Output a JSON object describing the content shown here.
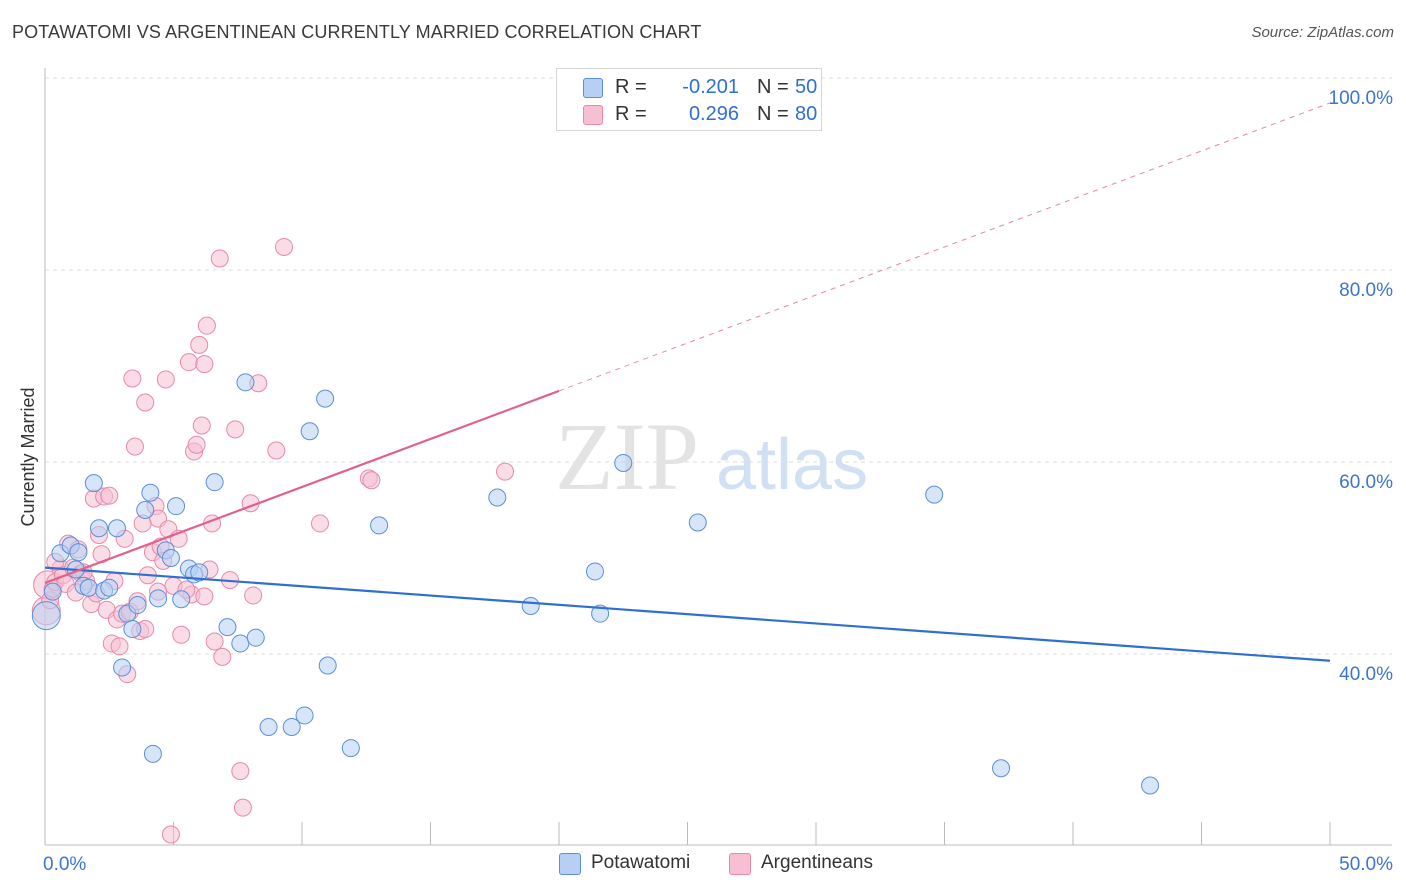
{
  "title": "POTAWATOMI VS ARGENTINEAN CURRENTLY MARRIED CORRELATION CHART",
  "source": "Source: ZipAtlas.com",
  "watermark": {
    "part1": "ZIP",
    "part2": "atlas"
  },
  "legend": {
    "rows": [
      {
        "r_label": "R =",
        "r_value": "-0.201",
        "n_label": "N =",
        "n_value": "50"
      },
      {
        "r_label": "R =",
        "r_value": "0.296",
        "n_label": "N =",
        "n_value": "80"
      }
    ]
  },
  "bottom_legend": [
    "Potawatomi",
    "Argentineans"
  ],
  "colors": {
    "blue_fill": "#b7cff3",
    "blue_stroke": "#5b8fd9",
    "blue_line": "#2f6fd1",
    "pink_fill": "#f6c0d2",
    "pink_stroke": "#e68aa8",
    "pink_line": "#e0628b",
    "axis_text": "#3a76d0",
    "grid": "#dcdcdc"
  },
  "chart_data": {
    "type": "scatter",
    "title": "POTAWATOMI VS ARGENTINEAN CURRENTLY MARRIED CORRELATION CHART",
    "xlabel": "",
    "ylabel": "Currently Married",
    "xlim": [
      0,
      50
    ],
    "ylim": [
      20,
      102
    ],
    "x_tick_labels": [
      "0.0%",
      "50.0%"
    ],
    "y_ticks": [
      40,
      60,
      80,
      100
    ],
    "y_tick_labels": [
      "40.0%",
      "60.0%",
      "80.0%",
      "100.0%"
    ],
    "grid": true,
    "legend_position": "top-center",
    "series": [
      {
        "name": "Potawatomi",
        "color": "#5b8fd9",
        "r": -0.201,
        "n": 50,
        "trend": {
          "x": [
            0,
            50
          ],
          "y": [
            49.0,
            39.3
          ],
          "style": "solid"
        },
        "points": [
          [
            0.05,
            44.0
          ],
          [
            0.6,
            50.5
          ],
          [
            1.0,
            51.3
          ],
          [
            1.2,
            48.8
          ],
          [
            1.3,
            50.6
          ],
          [
            1.5,
            47.1
          ],
          [
            1.7,
            46.9
          ],
          [
            1.9,
            57.8
          ],
          [
            2.1,
            53.1
          ],
          [
            2.3,
            46.6
          ],
          [
            2.5,
            46.9
          ],
          [
            2.8,
            53.1
          ],
          [
            3.0,
            38.6
          ],
          [
            3.2,
            44.2
          ],
          [
            3.4,
            42.6
          ],
          [
            3.6,
            45.1
          ],
          [
            3.9,
            55.0
          ],
          [
            4.1,
            56.8
          ],
          [
            4.2,
            29.6
          ],
          [
            4.4,
            45.8
          ],
          [
            4.7,
            50.8
          ],
          [
            4.9,
            50.0
          ],
          [
            5.1,
            55.4
          ],
          [
            5.3,
            45.7
          ],
          [
            5.6,
            48.9
          ],
          [
            5.8,
            48.3
          ],
          [
            6.0,
            48.5
          ],
          [
            6.6,
            57.9
          ],
          [
            7.1,
            42.8
          ],
          [
            7.6,
            41.1
          ],
          [
            7.8,
            68.3
          ],
          [
            8.2,
            41.7
          ],
          [
            8.7,
            32.4
          ],
          [
            9.6,
            32.4
          ],
          [
            10.1,
            33.6
          ],
          [
            10.3,
            63.2
          ],
          [
            10.9,
            66.6
          ],
          [
            11.0,
            38.8
          ],
          [
            11.9,
            30.2
          ],
          [
            13.0,
            53.4
          ],
          [
            17.6,
            56.3
          ],
          [
            18.9,
            45.0
          ],
          [
            21.4,
            48.6
          ],
          [
            21.6,
            44.2
          ],
          [
            22.5,
            59.9
          ],
          [
            25.4,
            53.7
          ],
          [
            34.6,
            56.6
          ],
          [
            37.2,
            28.1
          ],
          [
            43.0,
            26.3
          ],
          [
            0.3,
            46.5
          ]
        ]
      },
      {
        "name": "Argentineans",
        "color": "#e68aa8",
        "r": 0.296,
        "n": 80,
        "trend": {
          "x": [
            0,
            20
          ],
          "y": [
            47.4,
            67.4
          ],
          "x_dashed": [
            20,
            50
          ],
          "y_dashed": [
            67.4,
            97.4
          ]
        },
        "points": [
          [
            0.05,
            44.5
          ],
          [
            0.1,
            47.2
          ],
          [
            0.2,
            45.6
          ],
          [
            0.3,
            46.8
          ],
          [
            0.4,
            47.5
          ],
          [
            0.6,
            48.9
          ],
          [
            0.7,
            48.2
          ],
          [
            0.9,
            51.5
          ],
          [
            1.1,
            49.0
          ],
          [
            1.3,
            50.9
          ],
          [
            1.4,
            48.4
          ],
          [
            1.6,
            47.6
          ],
          [
            1.8,
            45.2
          ],
          [
            1.9,
            56.2
          ],
          [
            2.1,
            52.4
          ],
          [
            2.2,
            50.4
          ],
          [
            2.3,
            56.4
          ],
          [
            2.4,
            44.6
          ],
          [
            2.5,
            56.5
          ],
          [
            2.6,
            41.1
          ],
          [
            2.7,
            47.6
          ],
          [
            2.8,
            43.6
          ],
          [
            3.0,
            44.2
          ],
          [
            3.1,
            52.0
          ],
          [
            3.2,
            37.9
          ],
          [
            3.3,
            44.4
          ],
          [
            3.4,
            68.7
          ],
          [
            3.5,
            61.6
          ],
          [
            3.6,
            45.5
          ],
          [
            3.7,
            42.4
          ],
          [
            3.8,
            53.6
          ],
          [
            3.9,
            66.2
          ],
          [
            4.0,
            48.2
          ],
          [
            4.2,
            50.6
          ],
          [
            4.3,
            55.4
          ],
          [
            4.4,
            54.1
          ],
          [
            4.5,
            51.2
          ],
          [
            4.6,
            49.7
          ],
          [
            4.7,
            68.6
          ],
          [
            4.8,
            53.0
          ],
          [
            4.9,
            21.2
          ],
          [
            5.2,
            52.0
          ],
          [
            5.3,
            42.0
          ],
          [
            5.6,
            70.4
          ],
          [
            5.7,
            46.2
          ],
          [
            5.8,
            61.1
          ],
          [
            5.9,
            61.8
          ],
          [
            6.0,
            72.2
          ],
          [
            6.1,
            63.8
          ],
          [
            6.2,
            70.2
          ],
          [
            6.3,
            74.2
          ],
          [
            6.4,
            48.8
          ],
          [
            6.5,
            53.6
          ],
          [
            6.6,
            41.3
          ],
          [
            6.8,
            81.2
          ],
          [
            6.9,
            39.7
          ],
          [
            7.2,
            47.7
          ],
          [
            7.4,
            63.4
          ],
          [
            7.6,
            27.8
          ],
          [
            7.7,
            24.0
          ],
          [
            8.0,
            55.7
          ],
          [
            8.1,
            46.1
          ],
          [
            8.3,
            68.2
          ],
          [
            9.0,
            61.2
          ],
          [
            9.3,
            82.4
          ],
          [
            10.7,
            53.6
          ],
          [
            12.6,
            58.3
          ],
          [
            12.7,
            58.1
          ],
          [
            17.9,
            59.0
          ],
          [
            1.5,
            48.5
          ],
          [
            0.8,
            47.3
          ],
          [
            2.0,
            46.3
          ],
          [
            3.9,
            42.6
          ],
          [
            5.0,
            47.1
          ],
          [
            6.2,
            46.0
          ],
          [
            1.2,
            46.4
          ],
          [
            0.4,
            49.6
          ],
          [
            2.9,
            40.8
          ],
          [
            4.4,
            46.5
          ],
          [
            5.5,
            46.7
          ]
        ]
      }
    ]
  }
}
